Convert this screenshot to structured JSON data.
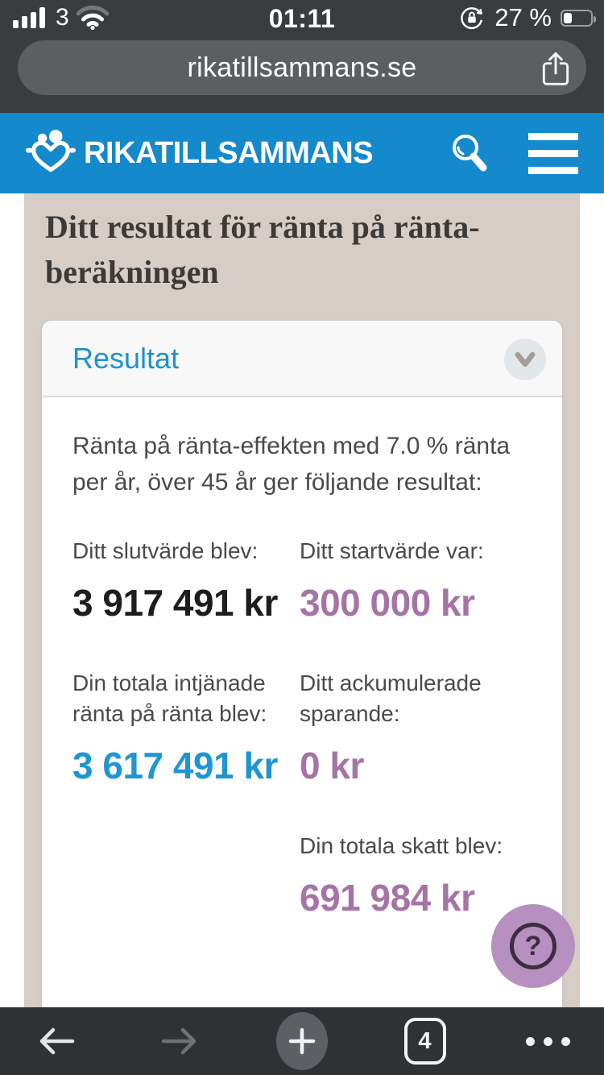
{
  "status_bar": {
    "carrier": "3",
    "time": "01:11",
    "battery_percent": "27 %",
    "battery_level": 27
  },
  "browser": {
    "url": "rikatillsammans.se",
    "tab_count": "4"
  },
  "site_header": {
    "logo_text": "RIKATILLSAMMANS"
  },
  "page": {
    "title": "Ditt resultat för ränta på ränta-beräkningen"
  },
  "result_card": {
    "header": "Resultat",
    "summary": "Ränta på ränta-effekten med 7.0 % ränta per år, över 45 år ger följande resultat:",
    "stats": [
      {
        "label": "Ditt slutvärde blev:",
        "value": "3 917 491 kr",
        "color": "black"
      },
      {
        "label": "Ditt startvärde var:",
        "value": "300 000 kr",
        "color": "purple"
      },
      {
        "label": "Din totala intjänade ränta på ränta blev:",
        "value": "3 617 491 kr",
        "color": "blue"
      },
      {
        "label": "Ditt ackumulerade sparande:",
        "value": "0 kr",
        "color": "purple"
      },
      {
        "label": "Din totala skatt blev:",
        "value": "691 984 kr",
        "color": "purple"
      }
    ]
  },
  "help_button": {
    "label": "?"
  },
  "colors": {
    "header_blue": "#1489cb",
    "accent_blue": "#1f95d4",
    "accent_purple": "#a673a7",
    "value_black": "#1d1d1f",
    "beige_background": "#d6cdc7",
    "help_button_purple": "#b78fc0",
    "chrome_dark": "#3a3d3f",
    "toolbar_dark": "#2f3234"
  },
  "icons": {
    "signal-bars": "4 filled bars",
    "wifi": "wifi fan, outer arc dimmed",
    "rotation-lock": "lock with circular arrow",
    "battery": "battery outline 27% filled",
    "share": "square with up arrow",
    "logo-heart": "two people forming a heart",
    "search": "magnifying glass",
    "menu": "hamburger three bars",
    "chevron-down": "collapse chevron",
    "help": "question mark in ring",
    "back": "left arrow",
    "forward": "right arrow (disabled)",
    "new-tab": "plus in circle",
    "tabs": "rounded square with tab count",
    "more": "three dots"
  }
}
